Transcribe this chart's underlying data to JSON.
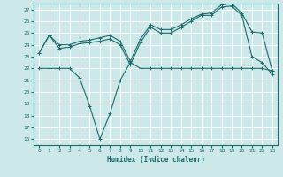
{
  "xlabel": "Humidex (Indice chaleur)",
  "ylabel": "",
  "background_color": "#cce8e8",
  "grid_color": "#b0d0d0",
  "line_color": "#1a6b6b",
  "xlim": [
    -0.5,
    23.5
  ],
  "ylim": [
    15.5,
    27.5
  ],
  "yticks": [
    16,
    17,
    18,
    19,
    20,
    21,
    22,
    23,
    24,
    25,
    26,
    27
  ],
  "xticks": [
    0,
    1,
    2,
    3,
    4,
    5,
    6,
    7,
    8,
    9,
    10,
    11,
    12,
    13,
    14,
    15,
    16,
    17,
    18,
    19,
    20,
    21,
    22,
    23
  ],
  "line1_x": [
    0,
    1,
    2,
    3,
    4,
    5,
    6,
    7,
    8,
    9,
    10,
    11,
    12,
    13,
    14,
    15,
    16,
    17,
    18,
    19,
    20,
    21,
    22,
    23
  ],
  "line1_y": [
    23.3,
    24.8,
    23.7,
    23.8,
    24.1,
    24.2,
    24.3,
    24.5,
    24.0,
    22.3,
    24.2,
    25.5,
    25.0,
    25.0,
    25.5,
    26.0,
    26.5,
    26.5,
    27.2,
    27.3,
    26.5,
    23.0,
    22.5,
    21.5
  ],
  "line2_x": [
    0,
    1,
    2,
    3,
    4,
    5,
    6,
    7,
    8,
    9,
    10,
    11,
    12,
    13,
    14,
    15,
    16,
    17,
    18,
    19,
    20,
    21,
    22,
    23
  ],
  "line2_y": [
    23.3,
    24.8,
    24.0,
    24.0,
    24.3,
    24.4,
    24.6,
    24.8,
    24.3,
    22.6,
    24.5,
    25.7,
    25.3,
    25.3,
    25.7,
    26.2,
    26.6,
    26.7,
    27.4,
    27.5,
    26.7,
    25.1,
    25.0,
    21.8
  ],
  "line3_x": [
    0,
    1,
    2,
    3,
    4,
    5,
    6,
    7,
    8,
    9,
    10,
    11,
    12,
    13,
    14,
    15,
    16,
    17,
    18,
    19,
    20,
    21,
    22,
    23
  ],
  "line3_y": [
    22.0,
    22.0,
    22.0,
    22.0,
    21.2,
    18.8,
    16.0,
    18.2,
    21.0,
    22.5,
    22.0,
    22.0,
    22.0,
    22.0,
    22.0,
    22.0,
    22.0,
    22.0,
    22.0,
    22.0,
    22.0,
    22.0,
    22.0,
    21.8
  ]
}
